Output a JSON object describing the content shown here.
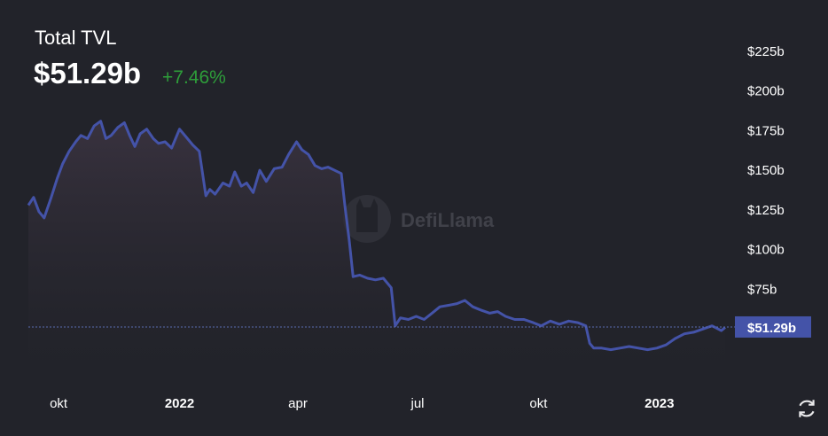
{
  "header": {
    "title": "Total TVL",
    "value": "$51.29b",
    "change": "+7.46%"
  },
  "watermark": {
    "text": "DefiLlama"
  },
  "colors": {
    "background": "#22232a",
    "line": "#4453a8",
    "positive": "#2e9e3a",
    "price_tag": "#4453a8"
  },
  "icons": {
    "refresh": "refresh-icon",
    "watermark_logo": "llama-icon"
  },
  "chart_data": {
    "type": "area",
    "title": "Total TVL",
    "xlabel": "",
    "ylabel": "",
    "x_ticks": [
      "okt",
      "2022",
      "apr",
      "jul",
      "okt",
      "2023"
    ],
    "y_ticks": [
      "$75b",
      "$100b",
      "$125b",
      "$150b",
      "$175b",
      "$200b",
      "$225b"
    ],
    "ylim": [
      20,
      235
    ],
    "current_value_label": "$51.29b",
    "current_value": 51.29,
    "grid": false,
    "series": [
      {
        "x": [
          "2021-09-08",
          "2021-09-12",
          "2021-09-16",
          "2021-09-20",
          "2021-09-25",
          "2021-09-30",
          "2021-10-04",
          "2021-10-09",
          "2021-10-14",
          "2021-10-18",
          "2021-10-23",
          "2021-10-28",
          "2021-11-02",
          "2021-11-06",
          "2021-11-10",
          "2021-11-15",
          "2021-11-20",
          "2021-11-24",
          "2021-11-28",
          "2021-12-02",
          "2021-12-07",
          "2021-12-12",
          "2021-12-16",
          "2021-12-21",
          "2021-12-26",
          "2022-01-01",
          "2022-01-06",
          "2022-01-11",
          "2022-01-16",
          "2022-01-21",
          "2022-01-24",
          "2022-01-28",
          "2022-02-03",
          "2022-02-08",
          "2022-02-12",
          "2022-02-17",
          "2022-02-21",
          "2022-02-26",
          "2022-03-03",
          "2022-03-08",
          "2022-03-14",
          "2022-03-20",
          "2022-03-25",
          "2022-03-31",
          "2022-04-04",
          "2022-04-09",
          "2022-04-14",
          "2022-04-19",
          "2022-04-24",
          "2022-04-29",
          "2022-05-04",
          "2022-05-07",
          "2022-05-10",
          "2022-05-13",
          "2022-05-18",
          "2022-05-24",
          "2022-05-30",
          "2022-06-05",
          "2022-06-11",
          "2022-06-14",
          "2022-06-18",
          "2022-06-24",
          "2022-06-30",
          "2022-07-06",
          "2022-07-12",
          "2022-07-18",
          "2022-07-25",
          "2022-07-31",
          "2022-08-06",
          "2022-08-12",
          "2022-08-18",
          "2022-08-25",
          "2022-08-31",
          "2022-09-06",
          "2022-09-13",
          "2022-09-20",
          "2022-09-27",
          "2022-10-03",
          "2022-10-10",
          "2022-10-17",
          "2022-10-24",
          "2022-10-31",
          "2022-11-06",
          "2022-11-09",
          "2022-11-12",
          "2022-11-18",
          "2022-11-25",
          "2022-12-02",
          "2022-12-09",
          "2022-12-16",
          "2022-12-23",
          "2022-12-30",
          "2023-01-06",
          "2023-01-13",
          "2023-01-20",
          "2023-01-27",
          "2023-02-03",
          "2023-02-10",
          "2023-02-17",
          "2023-02-20"
        ],
        "values": [
          128,
          133,
          124,
          120,
          132,
          145,
          154,
          162,
          168,
          172,
          170,
          178,
          181,
          170,
          172,
          177,
          180,
          172,
          165,
          173,
          176,
          170,
          167,
          168,
          164,
          176,
          171,
          166,
          162,
          134,
          138,
          135,
          142,
          140,
          149,
          140,
          142,
          136,
          150,
          143,
          151,
          152,
          160,
          168,
          163,
          160,
          153,
          151,
          152,
          150,
          148,
          126,
          106,
          83,
          84,
          82,
          81,
          82,
          76,
          52,
          57,
          56,
          58,
          56,
          60,
          64,
          65,
          66,
          68,
          64,
          62,
          60,
          61,
          58,
          56,
          56,
          54,
          52,
          55,
          53,
          55,
          54,
          52,
          41,
          38,
          38,
          37,
          38,
          39,
          38,
          37,
          38,
          40,
          44,
          47,
          48,
          50,
          52,
          49,
          51
        ]
      }
    ]
  }
}
